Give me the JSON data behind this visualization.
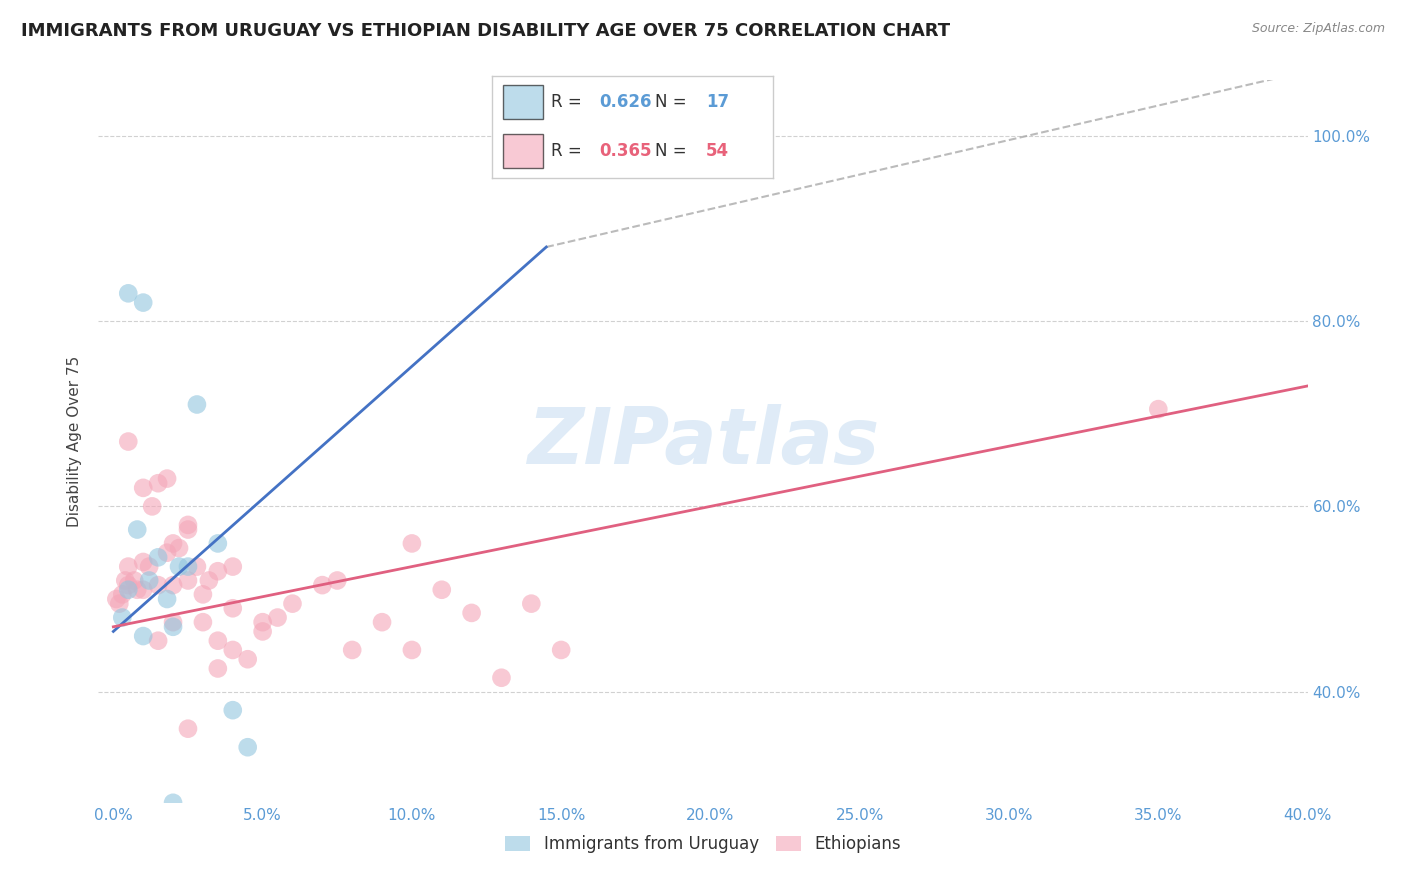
{
  "title": "IMMIGRANTS FROM URUGUAY VS ETHIOPIAN DISABILITY AGE OVER 75 CORRELATION CHART",
  "source": "Source: ZipAtlas.com",
  "ylabel": "Disability Age Over 75",
  "ytick_vals": [
    40.0,
    60.0,
    80.0,
    100.0
  ],
  "xtick_vals": [
    0.0,
    5.0,
    10.0,
    15.0,
    20.0,
    25.0,
    30.0,
    35.0,
    40.0
  ],
  "xlim": [
    -0.5,
    40.0
  ],
  "ylim": [
    28.0,
    106.0
  ],
  "legend1_R": "0.626",
  "legend1_N": "17",
  "legend2_R": "0.365",
  "legend2_N": "54",
  "legend1_color": "#5b9bd5",
  "legend2_color": "#e8627a",
  "uruguay_color": "#92c5de",
  "ethiopia_color": "#f4a6b8",
  "uruguay_line_color": "#4472c4",
  "ethiopia_line_color": "#e06080",
  "dash_line_color": "#aaaaaa",
  "uruguay_scatter": {
    "x": [
      0.3,
      0.5,
      0.8,
      1.0,
      1.2,
      1.5,
      1.8,
      2.0,
      2.2,
      2.5,
      2.8,
      3.5,
      4.0,
      4.5,
      1.0,
      0.5,
      2.0
    ],
    "y": [
      48.0,
      51.0,
      57.5,
      46.0,
      52.0,
      54.5,
      50.0,
      47.0,
      53.5,
      53.5,
      71.0,
      56.0,
      38.0,
      34.0,
      82.0,
      83.0,
      28.0
    ]
  },
  "ethiopia_scatter": {
    "x": [
      0.1,
      0.2,
      0.3,
      0.4,
      0.5,
      0.5,
      0.7,
      0.8,
      1.0,
      1.0,
      1.2,
      1.3,
      1.5,
      1.5,
      1.8,
      1.8,
      2.0,
      2.0,
      2.2,
      2.5,
      2.5,
      2.8,
      3.0,
      3.2,
      3.5,
      3.5,
      4.0,
      4.0,
      4.5,
      5.0,
      5.5,
      6.0,
      7.0,
      7.5,
      8.0,
      9.0,
      10.0,
      11.0,
      12.0,
      13.0,
      14.0,
      15.0,
      10.0,
      35.0,
      2.5,
      3.0,
      4.0,
      1.0,
      0.5,
      1.5,
      2.0,
      2.5,
      3.5,
      5.0
    ],
    "y": [
      50.0,
      49.5,
      50.5,
      52.0,
      51.5,
      53.5,
      52.0,
      51.0,
      54.0,
      51.0,
      53.5,
      60.0,
      62.5,
      51.5,
      63.0,
      55.0,
      56.0,
      51.5,
      55.5,
      57.5,
      52.0,
      53.5,
      50.5,
      52.0,
      53.0,
      45.5,
      53.5,
      49.0,
      43.5,
      46.5,
      48.0,
      49.5,
      51.5,
      52.0,
      44.5,
      47.5,
      44.5,
      51.0,
      48.5,
      41.5,
      49.5,
      44.5,
      56.0,
      70.5,
      58.0,
      47.5,
      44.5,
      62.0,
      67.0,
      45.5,
      47.5,
      36.0,
      42.5,
      47.5
    ]
  },
  "background_color": "#ffffff",
  "grid_color": "#cccccc",
  "axis_label_color": "#5b9bd5",
  "title_fontsize": 13,
  "label_fontsize": 11,
  "tick_fontsize": 11,
  "watermark_text": "ZIPatlas",
  "watermark_color": "#b8d4ee",
  "watermark_alpha": 0.45,
  "blue_line_x": [
    0.0,
    14.5
  ],
  "blue_line_y": [
    46.5,
    88.0
  ],
  "dash_line_x": [
    14.5,
    40.0
  ],
  "dash_line_y": [
    88.0,
    107.0
  ],
  "pink_line_x": [
    0.0,
    40.0
  ],
  "pink_line_y": [
    47.0,
    73.0
  ]
}
